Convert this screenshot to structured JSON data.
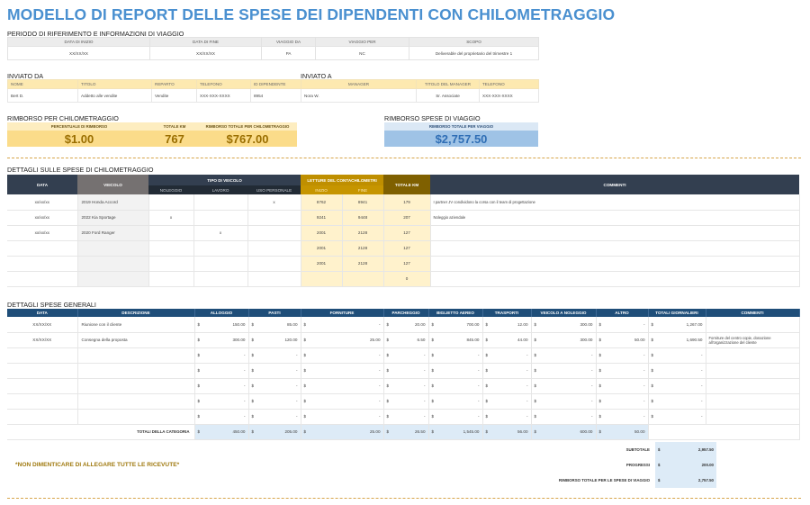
{
  "title": "MODELLO DI REPORT DELLE SPESE DEI DIPENDENTI CON CHILOMETRAGGIO",
  "period": {
    "heading": "PERIODO DI RIFERIMENTO E INFORMAZIONI DI VIAGGIO",
    "headers": [
      "DATA DI INIZIO",
      "DATA DI FINE",
      "VIAGGIO DA",
      "VIAGGIO PER",
      "SCOPO"
    ],
    "values": [
      "XX/XX/XX",
      "XX/XX/XX",
      "PA",
      "NC",
      "Deliverable del proprietario del trimestre 1"
    ]
  },
  "sent_from": {
    "heading": "INVIATO DA",
    "headers": [
      "NOME",
      "TITOLO",
      "REPARTO",
      "TELEFONO",
      "ID DIPENDENTE"
    ],
    "values": [
      "Bert D.",
      "Addetto alle vendite",
      "Vendite",
      "XXX-XXX-XXXX",
      "8954"
    ]
  },
  "sent_to": {
    "heading": "INVIATO A",
    "headers": [
      "MANAGER",
      "TITOLO DEL MANAGER",
      "TELEFONO"
    ],
    "values": [
      "Nora W.",
      "Sr. Associate",
      "XXX-XXX-XXXX"
    ]
  },
  "mileage_reimb": {
    "heading": "RIMBORSO PER CHILOMETRAGGIO",
    "headers": [
      "PERCENTUALE DI RIMBORSO",
      "TOTALE KM",
      "RIMBORSO TOTALE PER CHILOMETRAGGIO"
    ],
    "values": [
      "$1.00",
      "767",
      "$767.00"
    ]
  },
  "travel_reimb": {
    "heading": "RIMBORSO SPESE DI VIAGGIO",
    "header": "RIMBORSO TOTALE PER VIAGGIO",
    "value": "$2,757.50"
  },
  "mileage_details": {
    "heading": "DETTAGLI SULLE SPESE DI CHILOMETRAGGIO",
    "h_data": "DATA",
    "h_vehicle": "VEICOLO",
    "h_type": "TIPO DI VEICOLO",
    "h_type_sub": [
      "NOLEGGIO",
      "LAVORO",
      "USO PERSONALE"
    ],
    "h_odo": "LETTURE DEL CONTACHILOMETRI",
    "h_odo_sub": [
      "INIZIO",
      "FINE"
    ],
    "h_total": "TOTALE KM",
    "h_comments": "COMMENTI",
    "rows": [
      {
        "date": "xx/xx/xx",
        "vehicle": "2019 Honda Accord",
        "rent": "",
        "work": "",
        "personal": "x",
        "start": "8762",
        "end": "8941",
        "total": "179",
        "comment": "I partner JV condividono la corsa con il team di progettazione"
      },
      {
        "date": "xx/xx/xx",
        "vehicle": "2022 Kia Sportage",
        "rent": "x",
        "work": "",
        "personal": "",
        "start": "9241",
        "end": "9448",
        "total": "207",
        "comment": "Noleggio aziendale"
      },
      {
        "date": "xx/xx/xx",
        "vehicle": "2020 Ford Ranger",
        "rent": "",
        "work": "x",
        "personal": "",
        "start": "2001",
        "end": "2128",
        "total": "127",
        "comment": ""
      },
      {
        "date": "",
        "vehicle": "",
        "rent": "",
        "work": "",
        "personal": "",
        "start": "2001",
        "end": "2128",
        "total": "127",
        "comment": ""
      },
      {
        "date": "",
        "vehicle": "",
        "rent": "",
        "work": "",
        "personal": "",
        "start": "2001",
        "end": "2128",
        "total": "127",
        "comment": ""
      },
      {
        "date": "",
        "vehicle": "",
        "rent": "",
        "work": "",
        "personal": "",
        "start": "",
        "end": "",
        "total": "0",
        "comment": ""
      }
    ]
  },
  "general": {
    "heading": "DETTAGLI SPESE GENERALI",
    "headers": [
      "DATA",
      "DESCRIZIONE",
      "ALLOGGIO",
      "PASTI",
      "FORNITURE",
      "PARCHEGGIO",
      "BIGLIETTO AEREO",
      "TRASPORTI",
      "VEICOLO A NOLEGGIO",
      "ALTRO",
      "TOTALI GIORNALIERI",
      "COMMENTI"
    ],
    "currency": "$",
    "rows": [
      {
        "date": "XX/XX/XX",
        "desc": "Riunione con il cliente",
        "vals": [
          "150.00",
          "85.00",
          "-",
          "20.00",
          "700.00",
          "12.00",
          "300.00",
          "-",
          "1,267.00"
        ],
        "comment": ""
      },
      {
        "date": "XX/XX/XX",
        "desc": "Consegna della proposta",
        "vals": [
          "300.00",
          "120.00",
          "25.00",
          "6.50",
          "845.00",
          "44.00",
          "300.00",
          "50.00",
          "1,690.50"
        ],
        "comment": "Forniture del centro copie, donazione all'organizzazione del cliente"
      },
      {
        "date": "",
        "desc": "",
        "vals": [
          "-",
          "-",
          "-",
          "-",
          "-",
          "-",
          "-",
          "-",
          "-"
        ],
        "comment": ""
      },
      {
        "date": "",
        "desc": "",
        "vals": [
          "-",
          "-",
          "-",
          "-",
          "-",
          "-",
          "-",
          "-",
          "-"
        ],
        "comment": ""
      },
      {
        "date": "",
        "desc": "",
        "vals": [
          "-",
          "-",
          "-",
          "-",
          "-",
          "-",
          "-",
          "-",
          "-"
        ],
        "comment": ""
      },
      {
        "date": "",
        "desc": "",
        "vals": [
          "-",
          "-",
          "-",
          "-",
          "-",
          "-",
          "-",
          "-",
          "-"
        ],
        "comment": ""
      },
      {
        "date": "",
        "desc": "",
        "vals": [
          "-",
          "-",
          "-",
          "-",
          "-",
          "-",
          "-",
          "-",
          "-"
        ],
        "comment": ""
      }
    ],
    "totals_label": "TOTALI DELLA CATEGORIA",
    "totals": [
      "450.00",
      "205.00",
      "25.00",
      "26.50",
      "1,545.00",
      "56.00",
      "600.00",
      "50.00"
    ]
  },
  "summary": {
    "currency": "$",
    "rows": [
      {
        "label": "SUBTOTALE",
        "value": "2,957.50"
      },
      {
        "label": "PROGRESSI",
        "value": "200.00"
      },
      {
        "label": "RIMBORSO TOTALE PER LE SPESE DI VIAGGIO",
        "value": "2,757.50"
      }
    ]
  },
  "note": "*NON DIMENTICARE DI ALLEGARE TUTTE LE RICEVUTE*",
  "colors": {
    "title": "#4a90d0",
    "navy": "#333f50",
    "blue_header": "#1f4e79",
    "gold": "#bf8f00",
    "brown": "#7f6000",
    "light_yellow": "#fff2cc",
    "light_blue": "#ddebf7"
  }
}
